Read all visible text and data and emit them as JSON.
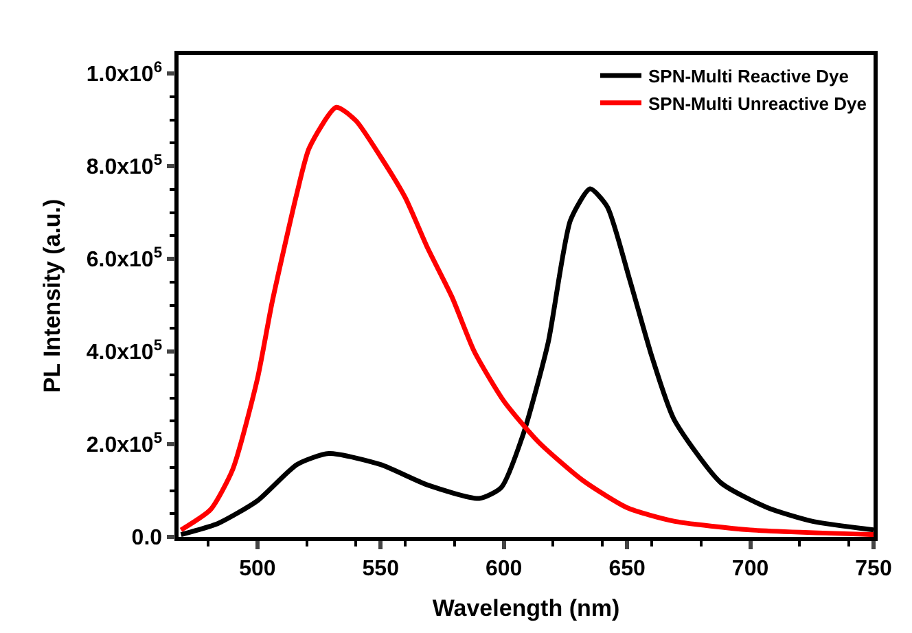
{
  "chart_data": {
    "type": "line",
    "xlabel": "Wavelength (nm)",
    "ylabel": "PL Intensity (a.u.)",
    "xlim": [
      468,
      750
    ],
    "xticks": [
      500,
      550,
      600,
      650,
      700,
      750
    ],
    "ylim": [
      0,
      1040000
    ],
    "yticks": [
      {
        "value": 0,
        "label": "0.0"
      },
      {
        "value": 200000,
        "label": "2.0x10$^{5}$"
      },
      {
        "value": 400000,
        "label": "4.0x10$^{5}$"
      },
      {
        "value": 600000,
        "label": "6.0x10$^{5}$"
      },
      {
        "value": 800000,
        "label": "8.0x10$^{5}$"
      },
      {
        "value": 1000000,
        "label": "1.0x10$^{6}$"
      }
    ],
    "legend": "top right",
    "marker": "none",
    "line_style": "solid",
    "series": [
      {
        "name": "SPN-Multi Reactive Dye",
        "color": "#000000",
        "x": [
          469,
          484,
          500,
          516,
          529,
          550,
          569,
          590,
          599,
          608,
          618,
          627,
          635,
          642,
          651,
          660,
          669,
          688,
          707,
          725,
          750
        ],
        "values": [
          5000,
          29000,
          78000,
          156000,
          180000,
          156000,
          112000,
          83000,
          107000,
          224000,
          420000,
          683000,
          751000,
          712000,
          556000,
          390000,
          254000,
          117000,
          63000,
          34000,
          15000
        ]
      },
      {
        "name": "SPN-Multi Unreactive Dye",
        "color": "#ff0000",
        "x": [
          469,
          481,
          490,
          500,
          506,
          516,
          521,
          532,
          540,
          550,
          560,
          569,
          579,
          588,
          600,
          614,
          632,
          650,
          669,
          700,
          750
        ],
        "values": [
          15000,
          59000,
          146000,
          341000,
          507000,
          741000,
          839000,
          927000,
          898000,
          820000,
          732000,
          624000,
          517000,
          400000,
          293000,
          205000,
          122000,
          63000,
          34000,
          15000,
          5000
        ]
      }
    ]
  }
}
